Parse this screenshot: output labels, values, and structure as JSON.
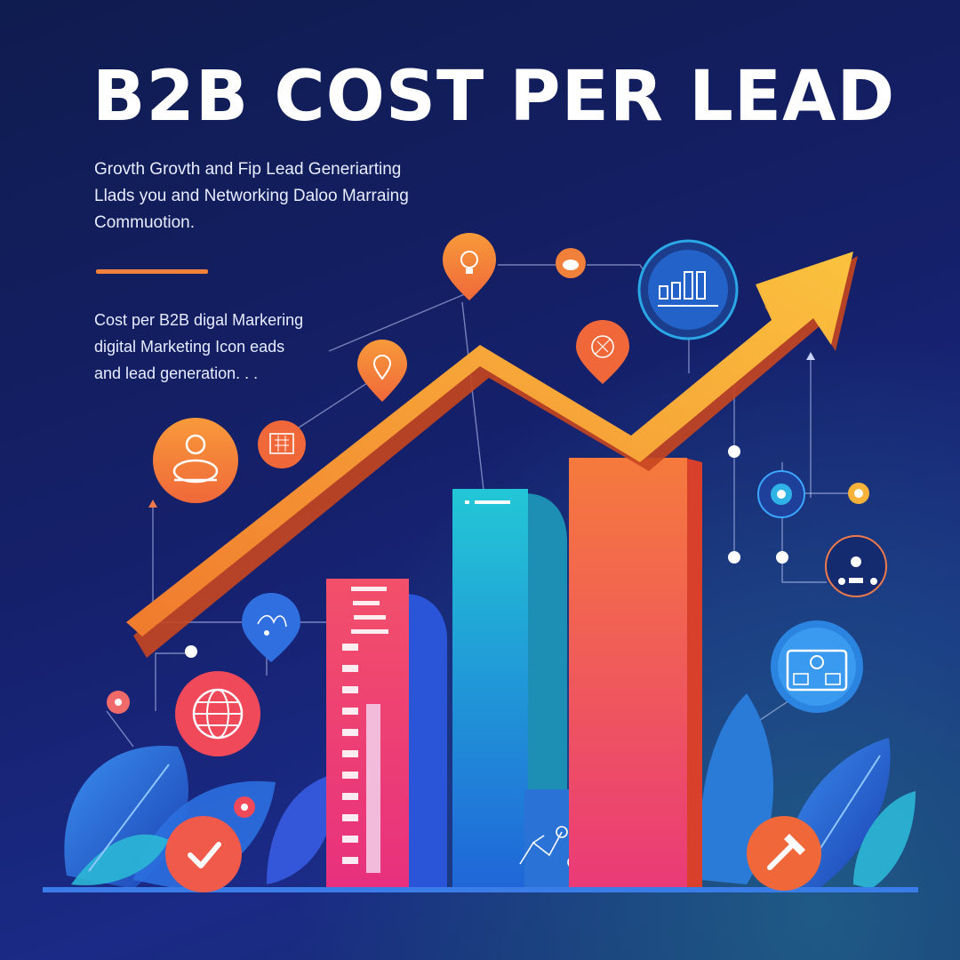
{
  "header": {
    "title": "B2B COST PER LEAD",
    "subtitle_lines": [
      "Grovth Grovth and Fip Lead Generiarting",
      "Llads you and Networking Daloo Marraing",
      "Commuotion."
    ]
  },
  "body": {
    "text_lines": [
      "Cost per B2B digal Markering",
      "digital Marketing Icon eads",
      "and lead generation. . ."
    ]
  },
  "colors": {
    "background": "#15206a",
    "accent_orange": "#f0803a",
    "arrow": "#f7a23c",
    "bar_pink": "#f0466e",
    "bar_cyan": "#23c3d9",
    "bar_orange": "#f26a45",
    "foliage": "#2b7ee0"
  },
  "icons": [
    "map-pin-lightbulb-icon",
    "map-pin-location-icon",
    "map-pin-people-icon",
    "bar-chart-icon",
    "person-icon",
    "calculator-icon",
    "globe-icon",
    "checkmark-icon",
    "hammer-icon",
    "id-card-icon",
    "network-icon",
    "leaf-icon"
  ]
}
